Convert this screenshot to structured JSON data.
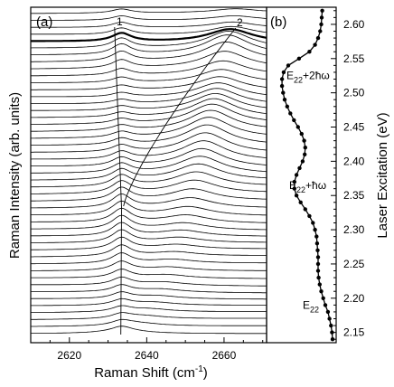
{
  "chart_data": [
    {
      "panel": "(a)",
      "type": "line",
      "xlabel": "Raman Shift (cm",
      "xlabel_sup": "-1",
      "xlabel_close": ")",
      "ylabel": "Raman Intensity (arb. units)",
      "xlim": [
        2610,
        2671
      ],
      "xticks": [
        2620,
        2640,
        2660
      ],
      "num_spectra": 47,
      "baseline_gap": 0.0217,
      "peak1": {
        "label": "1",
        "center": 2633.5
      },
      "peak2": {
        "label": "2",
        "center_low": 2634,
        "center_high": 2663
      },
      "spectra_note": "stacked spectra, one per laser excitation energy"
    },
    {
      "panel": "(b)",
      "type": "line",
      "ylabel": "Laser Excitation (eV)",
      "ylim": [
        2.135,
        2.625
      ],
      "yticks": [
        "2.15",
        "2.20",
        "2.25",
        "2.30",
        "2.35",
        "2.40",
        "2.45",
        "2.50",
        "2.55",
        "2.60"
      ],
      "annotations": [
        {
          "base": "E",
          "sub": "22",
          "extra": "",
          "energy": 2.19
        },
        {
          "base": "E",
          "sub": "22",
          "extra": "+ħω",
          "energy": 2.365
        },
        {
          "base": "E",
          "sub": "22",
          "extra": "+2ħω",
          "energy": 2.525
        }
      ],
      "profile": [
        [
          2.14,
          1.0
        ],
        [
          2.15,
          0.99
        ],
        [
          2.16,
          0.97
        ],
        [
          2.17,
          0.94
        ],
        [
          2.18,
          0.91
        ],
        [
          2.19,
          0.86
        ],
        [
          2.2,
          0.82
        ],
        [
          2.21,
          0.78
        ],
        [
          2.22,
          0.75
        ],
        [
          2.23,
          0.73
        ],
        [
          2.24,
          0.72
        ],
        [
          2.25,
          0.72
        ],
        [
          2.26,
          0.72
        ],
        [
          2.27,
          0.71
        ],
        [
          2.28,
          0.7
        ],
        [
          2.29,
          0.69
        ],
        [
          2.3,
          0.66
        ],
        [
          2.31,
          0.62
        ],
        [
          2.32,
          0.55
        ],
        [
          2.33,
          0.47
        ],
        [
          2.34,
          0.38
        ],
        [
          2.35,
          0.3
        ],
        [
          2.36,
          0.26
        ],
        [
          2.37,
          0.26
        ],
        [
          2.38,
          0.3
        ],
        [
          2.39,
          0.36
        ],
        [
          2.4,
          0.42
        ],
        [
          2.41,
          0.46
        ],
        [
          2.42,
          0.47
        ],
        [
          2.43,
          0.45
        ],
        [
          2.44,
          0.4
        ],
        [
          2.45,
          0.33
        ],
        [
          2.46,
          0.25
        ],
        [
          2.47,
          0.18
        ],
        [
          2.48,
          0.12
        ],
        [
          2.49,
          0.07
        ],
        [
          2.5,
          0.04
        ],
        [
          2.51,
          0.02
        ],
        [
          2.52,
          0.02
        ],
        [
          2.53,
          0.05
        ],
        [
          2.54,
          0.14
        ],
        [
          2.55,
          0.35
        ],
        [
          2.56,
          0.55
        ],
        [
          2.57,
          0.66
        ],
        [
          2.58,
          0.72
        ],
        [
          2.59,
          0.76
        ],
        [
          2.6,
          0.78
        ],
        [
          2.61,
          0.79
        ],
        [
          2.62,
          0.8
        ]
      ]
    }
  ]
}
